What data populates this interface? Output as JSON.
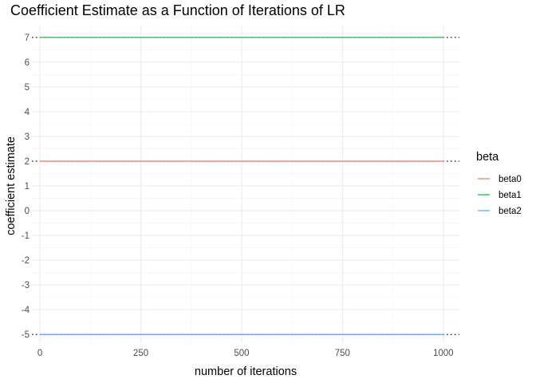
{
  "chart_data": {
    "type": "line",
    "title": "Coefficient Estimate as a Function of Iterations of LR",
    "xlabel": "number of iterations",
    "ylabel": "coefficient estimate",
    "xlim": [
      -20,
      1040
    ],
    "ylim": [
      -5.35,
      7.45
    ],
    "x_ticks": [
      0,
      250,
      500,
      750,
      1000
    ],
    "x_tick_labels": [
      "0",
      "250",
      "500",
      "750",
      "1000"
    ],
    "y_ticks": [
      -5,
      -4,
      -3,
      -2,
      -1,
      0,
      1,
      2,
      3,
      4,
      5,
      6,
      7
    ],
    "y_tick_labels": [
      "-5",
      "-4",
      "-3",
      "-2",
      "-1",
      "0",
      "1",
      "2",
      "3",
      "4",
      "5",
      "6",
      "7"
    ],
    "grid": true,
    "legend": {
      "title": "beta",
      "position": "right"
    },
    "series": [
      {
        "name": "beta0",
        "color": "#F8766D",
        "x": [
          0,
          1000
        ],
        "values": [
          2,
          2
        ]
      },
      {
        "name": "beta1",
        "color": "#00BA38",
        "x": [
          0,
          1000
        ],
        "values": [
          7,
          7
        ]
      },
      {
        "name": "beta2",
        "color": "#619CFF",
        "x": [
          0,
          1000
        ],
        "values": [
          -5,
          -5
        ]
      }
    ],
    "reference_lines": [
      {
        "y": 7,
        "style": "dotted",
        "color": "#000000"
      },
      {
        "y": 2,
        "style": "dotted",
        "color": "#000000"
      },
      {
        "y": -5,
        "style": "dotted",
        "color": "#000000"
      }
    ]
  }
}
